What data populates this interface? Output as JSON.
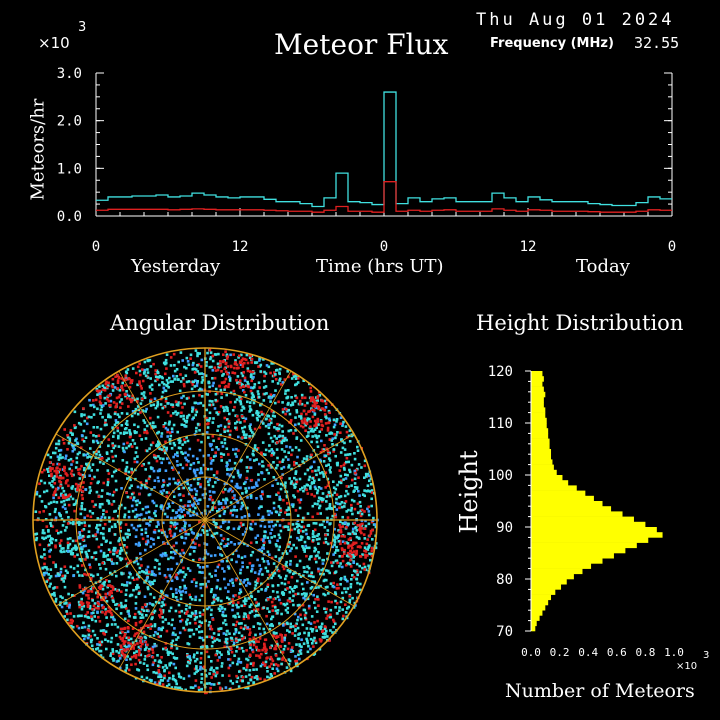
{
  "header": {
    "date": "Thu Aug 01 2024",
    "freq_label": "Frequency (MHz)",
    "freq_value": "32.55",
    "multiplier_base": "×10",
    "multiplier_exp": "3"
  },
  "flux": {
    "title": "Meteor Flux",
    "ylabel": "Meteors/hr",
    "xlabel": "Time (hrs UT)",
    "left_label": "Yesterday",
    "right_label": "Today"
  },
  "angular": {
    "title": "Angular Distribution"
  },
  "height": {
    "title": "Height Distribution",
    "ylabel": "Height",
    "xlabel": "Number of Meteors",
    "multiplier_base": "×10",
    "multiplier_exp": "3"
  },
  "colors": {
    "cyan": "#40e0e0",
    "red": "#e02020",
    "yellow": "#ffff00",
    "orange": "#e0a020",
    "sky_blue": "#40a0ff",
    "axis": "#ffffff"
  },
  "chart_data": [
    {
      "type": "line",
      "title": "Meteor Flux",
      "ylabel": "Meteors/hr",
      "xlabel": "Time (hrs UT)",
      "y_multiplier": "×10^3",
      "xlim": [
        -24,
        24
      ],
      "ylim": [
        0,
        3.0
      ],
      "x_ticks": [
        0,
        12,
        0,
        12,
        0
      ],
      "y_ticks": [
        "0.0",
        "1.0",
        "2.0",
        "3.0"
      ],
      "hours": [
        -24,
        -23,
        -22,
        -21,
        -20,
        -19,
        -18,
        -17,
        -16,
        -15,
        -14,
        -13,
        -12,
        -11,
        -10,
        -9,
        -8,
        -7,
        -6,
        -5,
        -4,
        -3,
        -2,
        -1,
        0,
        1,
        2,
        3,
        4,
        5,
        6,
        7,
        8,
        9,
        10,
        11,
        12,
        13,
        14,
        15,
        16,
        17,
        18,
        19,
        20,
        21,
        22,
        23
      ],
      "series": [
        {
          "name": "",
          "color": "#40e0e0",
          "values": [
            0.33,
            0.4,
            0.4,
            0.42,
            0.42,
            0.44,
            0.4,
            0.42,
            0.48,
            0.44,
            0.4,
            0.38,
            0.4,
            0.4,
            0.35,
            0.3,
            0.3,
            0.26,
            0.2,
            0.38,
            0.9,
            0.3,
            0.28,
            0.24,
            2.6,
            0.26,
            0.38,
            0.3,
            0.36,
            0.38,
            0.3,
            0.3,
            0.3,
            0.48,
            0.38,
            0.3,
            0.4,
            0.34,
            0.3,
            0.3,
            0.3,
            0.26,
            0.24,
            0.22,
            0.22,
            0.28,
            0.4,
            0.36
          ]
        },
        {
          "name": "",
          "color": "#e02020",
          "values": [
            0.12,
            0.14,
            0.14,
            0.14,
            0.14,
            0.14,
            0.13,
            0.14,
            0.15,
            0.14,
            0.13,
            0.13,
            0.13,
            0.13,
            0.12,
            0.11,
            0.1,
            0.1,
            0.08,
            0.12,
            0.2,
            0.1,
            0.1,
            0.08,
            0.72,
            0.1,
            0.12,
            0.1,
            0.12,
            0.13,
            0.1,
            0.1,
            0.1,
            0.15,
            0.12,
            0.1,
            0.13,
            0.12,
            0.1,
            0.1,
            0.1,
            0.09,
            0.08,
            0.08,
            0.08,
            0.1,
            0.13,
            0.12
          ]
        }
      ]
    },
    {
      "type": "bar",
      "orientation": "horizontal",
      "title": "Height Distribution",
      "ylabel": "Height",
      "xlabel": "Number of Meteors",
      "x_multiplier": "×10^3",
      "xlim": [
        0,
        1.0
      ],
      "ylim": [
        70,
        120
      ],
      "x_ticks": [
        "0.0",
        "0.2",
        "0.4",
        "0.6",
        "0.8",
        "1.0"
      ],
      "y_ticks": [
        70,
        80,
        90,
        100,
        110,
        120
      ],
      "heights": [
        70,
        71,
        72,
        73,
        74,
        75,
        76,
        77,
        78,
        79,
        80,
        81,
        82,
        83,
        84,
        85,
        86,
        87,
        88,
        89,
        90,
        91,
        92,
        93,
        94,
        95,
        96,
        97,
        98,
        99,
        100,
        101,
        102,
        103,
        104,
        105,
        106,
        107,
        108,
        109,
        110,
        111,
        112,
        113,
        114,
        115,
        116,
        117,
        118,
        119
      ],
      "values": [
        0.03,
        0.04,
        0.06,
        0.08,
        0.1,
        0.12,
        0.14,
        0.17,
        0.21,
        0.25,
        0.3,
        0.36,
        0.42,
        0.5,
        0.58,
        0.66,
        0.74,
        0.82,
        0.92,
        0.88,
        0.8,
        0.72,
        0.64,
        0.56,
        0.5,
        0.44,
        0.38,
        0.32,
        0.26,
        0.22,
        0.18,
        0.16,
        0.15,
        0.14,
        0.14,
        0.13,
        0.13,
        0.12,
        0.12,
        0.11,
        0.11,
        0.1,
        0.1,
        0.09,
        0.09,
        0.1,
        0.09,
        0.08,
        0.09,
        0.08
      ]
    }
  ]
}
